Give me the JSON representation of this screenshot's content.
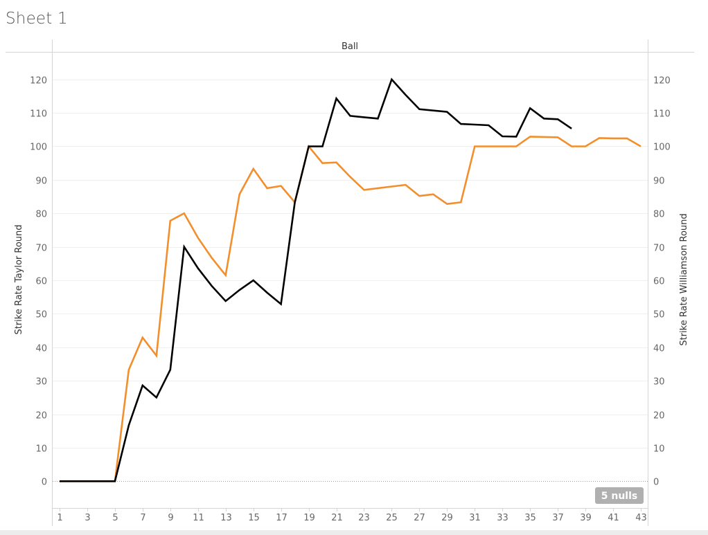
{
  "sheet": {
    "title": "Sheet 1"
  },
  "chart_data": {
    "type": "line",
    "header": "Ball",
    "ylabel_left": "Strike Rate Taylor Round",
    "ylabel_right": "Strike Rate Williamson Round",
    "x_ticks": [
      1,
      3,
      5,
      7,
      9,
      11,
      13,
      15,
      17,
      19,
      21,
      23,
      25,
      27,
      29,
      31,
      33,
      35,
      37,
      39,
      41,
      43
    ],
    "y_ticks": [
      0,
      10,
      20,
      30,
      40,
      50,
      60,
      70,
      80,
      90,
      100,
      110,
      120
    ],
    "xlim": [
      0.5,
      43.5
    ],
    "ylim": [
      -8,
      128
    ],
    "grid": true,
    "nulls_badge": "5 nulls",
    "series": [
      {
        "color": "#000000",
        "axis": "left",
        "points": [
          [
            1,
            0
          ],
          [
            2,
            0
          ],
          [
            3,
            0
          ],
          [
            4,
            0
          ],
          [
            5,
            0
          ],
          [
            6,
            16.7
          ],
          [
            7,
            28.6
          ],
          [
            8,
            25
          ],
          [
            9,
            33.3
          ],
          [
            10,
            70
          ],
          [
            11,
            63.6
          ],
          [
            12,
            58.3
          ],
          [
            13,
            53.8
          ],
          [
            14,
            57.1
          ],
          [
            15,
            60
          ],
          [
            16,
            56.3
          ],
          [
            17,
            52.9
          ],
          [
            18,
            83.3
          ],
          [
            19,
            100
          ],
          [
            20,
            100
          ],
          [
            21,
            114.3
          ],
          [
            22,
            109.1
          ],
          [
            23,
            108.7
          ],
          [
            24,
            108.3
          ],
          [
            25,
            120
          ],
          [
            26,
            115.4
          ],
          [
            27,
            111.1
          ],
          [
            28,
            110.7
          ],
          [
            29,
            110.3
          ],
          [
            30,
            106.7
          ],
          [
            31,
            106.5
          ],
          [
            32,
            106.3
          ],
          [
            33,
            103
          ],
          [
            34,
            102.9
          ],
          [
            35,
            111.4
          ],
          [
            36,
            108.3
          ],
          [
            37,
            108.1
          ],
          [
            38,
            105.3
          ]
        ]
      },
      {
        "color": "#f28e2b",
        "axis": "right",
        "points": [
          [
            1,
            0
          ],
          [
            2,
            0
          ],
          [
            3,
            0
          ],
          [
            4,
            0
          ],
          [
            5,
            0
          ],
          [
            6,
            33.3
          ],
          [
            7,
            42.9
          ],
          [
            8,
            37.5
          ],
          [
            9,
            77.8
          ],
          [
            10,
            80
          ],
          [
            11,
            72.7
          ],
          [
            12,
            66.7
          ],
          [
            13,
            61.5
          ],
          [
            14,
            85.7
          ],
          [
            15,
            93.3
          ],
          [
            16,
            87.5
          ],
          [
            17,
            88.2
          ],
          [
            18,
            83.3
          ],
          [
            19,
            100
          ],
          [
            20,
            95
          ],
          [
            21,
            95.2
          ],
          [
            22,
            90.9
          ],
          [
            23,
            87
          ],
          [
            24,
            87.5
          ],
          [
            25,
            88
          ],
          [
            26,
            88.5
          ],
          [
            27,
            85.2
          ],
          [
            28,
            85.7
          ],
          [
            29,
            82.8
          ],
          [
            30,
            83.3
          ],
          [
            31,
            100
          ],
          [
            32,
            100
          ],
          [
            33,
            100
          ],
          [
            34,
            100
          ],
          [
            35,
            102.9
          ],
          [
            36,
            102.8
          ],
          [
            37,
            102.7
          ],
          [
            38,
            100
          ],
          [
            39,
            100
          ],
          [
            40,
            102.5
          ],
          [
            41,
            102.4
          ],
          [
            42,
            102.4
          ],
          [
            43,
            100
          ]
        ]
      }
    ]
  }
}
